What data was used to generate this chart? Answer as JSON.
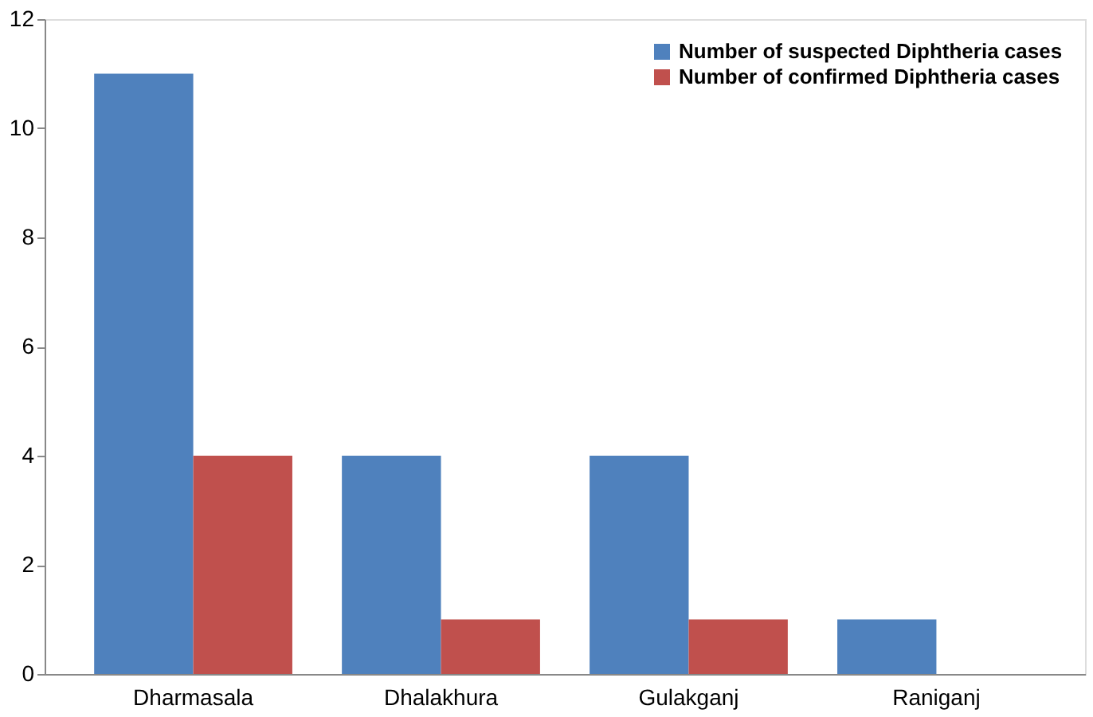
{
  "chart_data": {
    "type": "bar",
    "categories": [
      "Dharmasala",
      "Dhalakhura",
      "Gulakganj",
      "Raniganj"
    ],
    "series": [
      {
        "name": "Number of suspected Diphtheria cases",
        "color": "#4f81bd",
        "values": [
          11,
          4,
          4,
          1
        ]
      },
      {
        "name": "Number of confirmed Diphtheria cases",
        "color": "#c0504d",
        "values": [
          4,
          1,
          1,
          0
        ]
      }
    ],
    "ylim": [
      0,
      12
    ],
    "yticks": [
      0,
      2,
      4,
      6,
      8,
      10,
      12
    ],
    "grid": false,
    "legend": "top right"
  }
}
